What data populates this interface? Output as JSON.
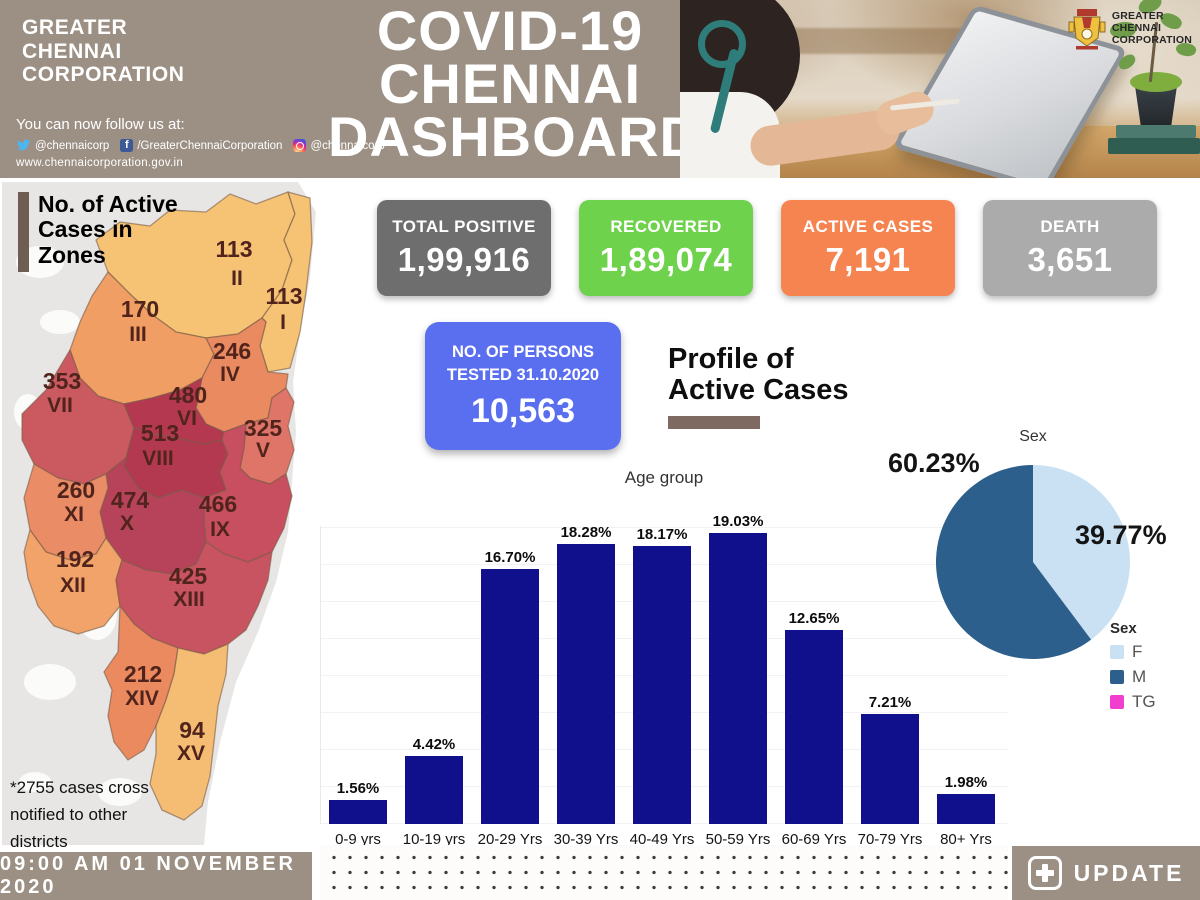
{
  "theme": {
    "brand_taupe": "#9c9084",
    "accent_bar": "#6e5d52",
    "heading_underline": "#7e6a61",
    "bar_color": "#10108c"
  },
  "header": {
    "org_name_lines": [
      "GREATER",
      "CHENNAI",
      "CORPORATION"
    ],
    "title_lines": [
      "COVID-19",
      "CHENNAI",
      "DASHBOARD"
    ],
    "follow_label": "You can now follow us at:",
    "social": {
      "twitter": "@chennaicorp",
      "facebook": "/GreaterChennaiCorporation",
      "instagram": "@chennaicorp"
    },
    "website": "www.chennaicorporation.gov.in",
    "logo_text_lines": [
      "GREATER",
      "CHENNAI",
      "CORPORATION"
    ]
  },
  "summary_cards": [
    {
      "label": "TOTAL POSITIVE",
      "value": "1,99,916",
      "color": "#6e6e6e"
    },
    {
      "label": "RECOVERED",
      "value": "1,89,074",
      "color": "#6fd24c"
    },
    {
      "label": "ACTIVE CASES",
      "value": "7,191",
      "color": "#f68451"
    },
    {
      "label": "DEATH",
      "value": "3,651",
      "color": "#ababab"
    }
  ],
  "tested_card": {
    "line1": "NO. OF PERSONS",
    "line2": "TESTED 31.10.2020",
    "value": "10,563",
    "color": "#5a6ef0"
  },
  "profile_heading": {
    "line1": "Profile of",
    "line2": "Active Cases"
  },
  "map": {
    "heading_lines": [
      "No. of Active",
      "Cases in",
      "Zones"
    ],
    "note_lines": [
      "*2755 cases cross",
      "notified to other",
      "districts"
    ],
    "zones": [
      {
        "id": "I",
        "cases": "113",
        "color": "#f6c274"
      },
      {
        "id": "II",
        "cases": "113",
        "color": "#f6c274"
      },
      {
        "id": "III",
        "cases": "170",
        "color": "#f09e63"
      },
      {
        "id": "IV",
        "cases": "246",
        "color": "#ea8a61"
      },
      {
        "id": "V",
        "cases": "325",
        "color": "#df7468"
      },
      {
        "id": "VI",
        "cases": "480",
        "color": "#b43850"
      },
      {
        "id": "VII",
        "cases": "353",
        "color": "#cb5a60"
      },
      {
        "id": "VIII",
        "cases": "513",
        "color": "#b23950"
      },
      {
        "id": "IX",
        "cases": "466",
        "color": "#c84f5f"
      },
      {
        "id": "X",
        "cases": "474",
        "color": "#b7435a"
      },
      {
        "id": "XI",
        "cases": "260",
        "color": "#ea8c66"
      },
      {
        "id": "XII",
        "cases": "192",
        "color": "#f2a369"
      },
      {
        "id": "XIII",
        "cases": "425",
        "color": "#c85462"
      },
      {
        "id": "XIV",
        "cases": "212",
        "color": "#ec8a5f"
      },
      {
        "id": "XV",
        "cases": "94",
        "color": "#f5bd74"
      }
    ]
  },
  "chart_data": [
    {
      "type": "bar",
      "title": "Age group",
      "categories": [
        "0-9 yrs",
        "10-19 yrs",
        "20-29 Yrs",
        "30-39 Yrs",
        "40-49 Yrs",
        "50-59 Yrs",
        "60-69 Yrs",
        "70-79 Yrs",
        "80+ Yrs"
      ],
      "values": [
        1.56,
        4.42,
        16.7,
        18.28,
        18.17,
        19.03,
        12.65,
        7.21,
        1.98
      ],
      "value_suffix": "%",
      "bar_color": "#10108c",
      "xlabel": "",
      "ylabel": "",
      "ylim": [
        0,
        20
      ],
      "grid": true,
      "legend_position": "none"
    },
    {
      "type": "pie",
      "title": "Sex",
      "legend_title": "Sex",
      "legend_position": "right",
      "labels": [
        "F",
        "M",
        "TG"
      ],
      "values": [
        39.77,
        60.23,
        0
      ],
      "colors": [
        "#c9e1f3",
        "#2d5f8c",
        "#f23ece"
      ],
      "annotations": [
        "60.23%",
        "39.77%"
      ]
    }
  ],
  "footer": {
    "timestamp": "09:00 AM 01 NOVEMBER 2020",
    "update_label": "UPDATE"
  }
}
